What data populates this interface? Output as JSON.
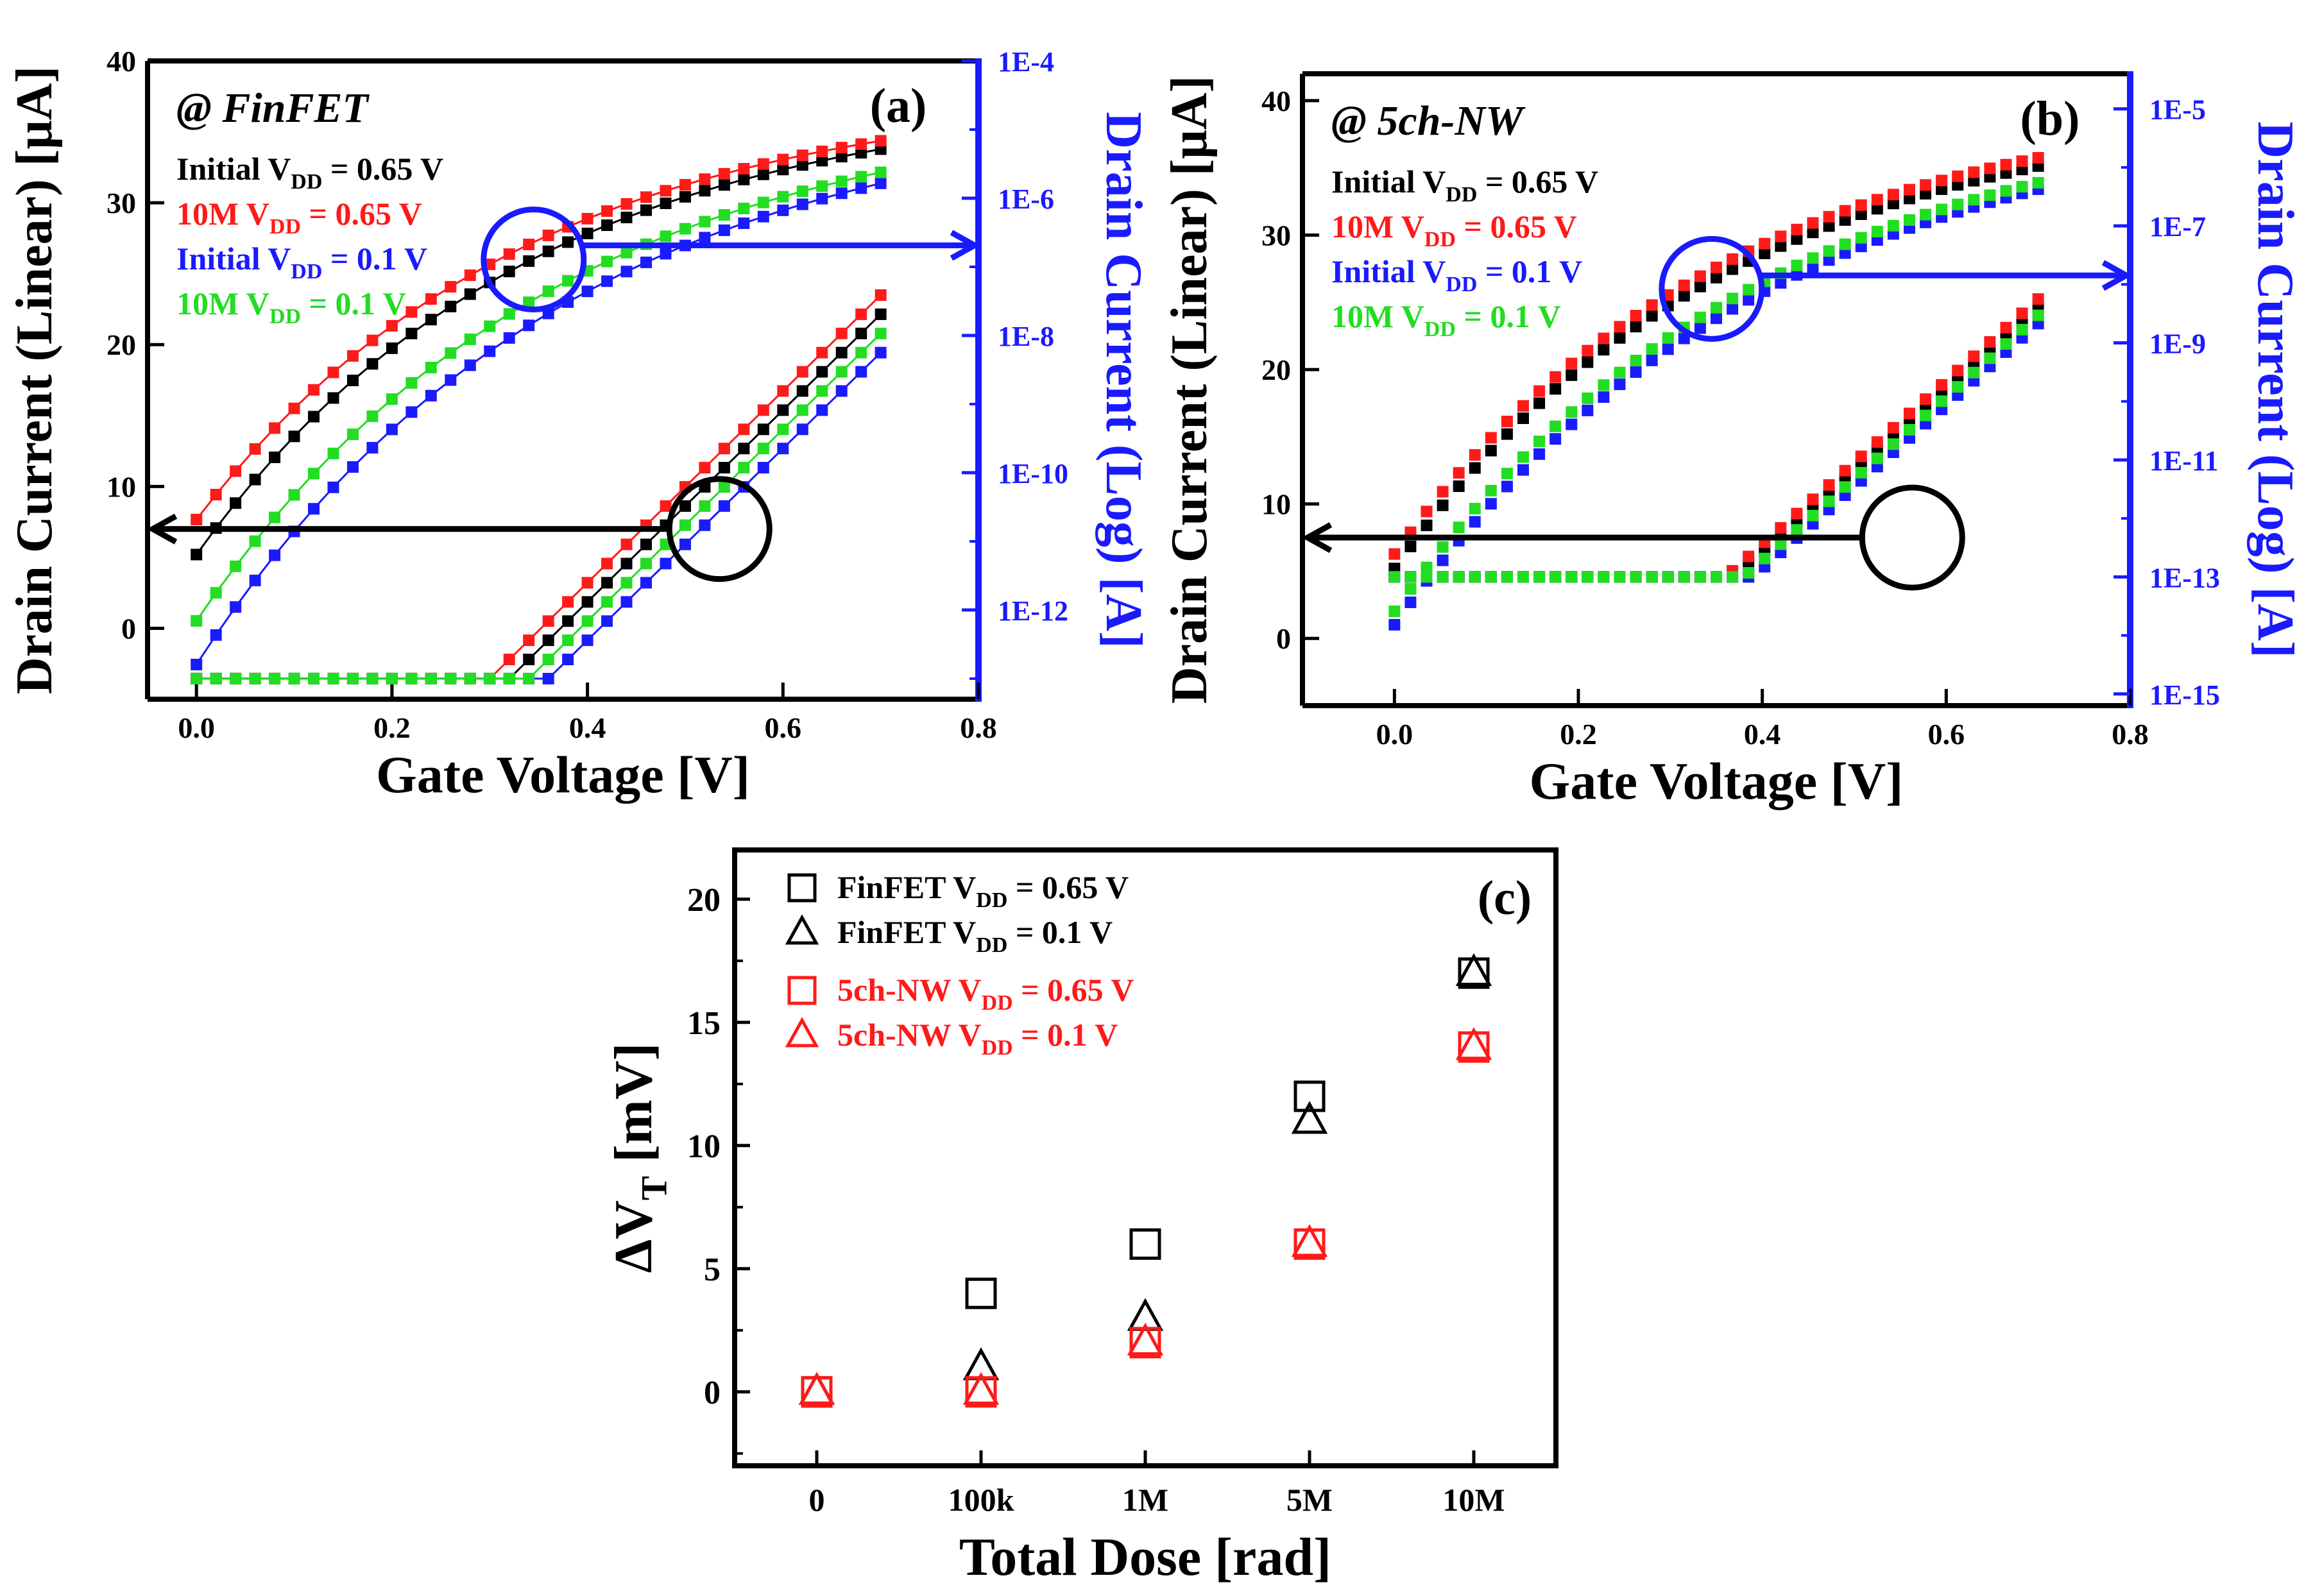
{
  "colors": {
    "black": "#000000",
    "red": "#ff1a1a",
    "green": "#22dd22",
    "blue": "#1a1aff",
    "axis_blue": "#1a1aff"
  },
  "chart_data": [
    {
      "id": "a",
      "type": "line",
      "panel_label": "(a)",
      "device_label": "@ FinFET",
      "xlabel": "Gate Voltage [V]",
      "ylabel": "Drain Current (Linear) [μA]",
      "y2label": "Drain Current (Log) [A]",
      "xlim": [
        -0.05,
        0.8
      ],
      "ylim": [
        -5,
        40
      ],
      "y2lim_log10": [
        -13.3,
        -4
      ],
      "xticks": [
        "0.0",
        "0.2",
        "0.4",
        "0.6",
        "0.8"
      ],
      "xtick_values": [
        0.0,
        0.2,
        0.4,
        0.6,
        0.8
      ],
      "yticks": [
        "0",
        "10",
        "20",
        "30",
        "40"
      ],
      "ytick_values": [
        0,
        10,
        20,
        30,
        40
      ],
      "y2ticks": [
        "1E-12",
        "1E-10",
        "1E-8",
        "1E-6",
        "1E-4"
      ],
      "y2tick_exps": [
        -12,
        -10,
        -8,
        -6,
        -4
      ],
      "legend": [
        {
          "pre": "Initial V",
          "sub": "DD",
          "post": " = 0.65 V",
          "color": "#000000"
        },
        {
          "pre": "10M V",
          "sub": "DD",
          "post": " = 0.65 V",
          "color": "#ff1a1a"
        },
        {
          "pre": "Initial V",
          "sub": "DD",
          "post": " = 0.1 V",
          "color": "#1a1aff"
        },
        {
          "pre": "10M V",
          "sub": "DD",
          "post": " = 0.1 V",
          "color": "#22dd22"
        }
      ],
      "circle_linear": {
        "x": 0.345,
        "y": 26,
        "label": "linear-region-circle"
      },
      "circle_log": {
        "x": 0.535,
        "y": 7,
        "label": "subthreshold-circle"
      },
      "arrow_right_y": 27,
      "arrow_left_y": 7,
      "series": [
        {
          "name": "Initial V_DD = 0.65 V",
          "color": "#000000",
          "lin_offset": 0,
          "lin_shift": 0,
          "log_shift": 0.0,
          "vt": 0.5,
          "sat": 38.0,
          "ion_exp": -4.7
        },
        {
          "name": "10M V_DD = 0.65 V",
          "color": "#ff1a1a",
          "lin_offset": 0,
          "lin_shift": -0.02,
          "log_shift": -0.015,
          "vt": 0.48,
          "sat": 38.2,
          "ion_exp": -4.6
        },
        {
          "name": "Initial V_DD = 0.1 V",
          "color": "#1a1aff",
          "lin_offset": 0,
          "lin_shift": 0.04,
          "log_shift": 0.045,
          "vt": 0.54,
          "sat": 37.6,
          "ion_exp": -7.6
        },
        {
          "name": "10M V_DD = 0.1 V",
          "color": "#22dd22",
          "lin_offset": 0,
          "lin_shift": 0.02,
          "log_shift": 0.03,
          "vt": 0.52,
          "sat": 37.6,
          "ion_exp": -7.3
        }
      ],
      "connect_lines": true
    },
    {
      "id": "b",
      "type": "scatter",
      "panel_label": "(b)",
      "device_label": "@ 5ch-NW",
      "xlabel": "Gate Voltage [V]",
      "ylabel": "Drain Current (Linear) [μA]",
      "y2label": "Drain Current (Log) [A]",
      "xlim": [
        -0.1,
        0.8
      ],
      "ylim": [
        -5,
        42
      ],
      "y2lim_log10": [
        -15.2,
        -4.4
      ],
      "xticks": [
        "0.0",
        "0.2",
        "0.4",
        "0.6",
        "0.8"
      ],
      "xtick_values": [
        0.0,
        0.2,
        0.4,
        0.6,
        0.8
      ],
      "yticks": [
        "0",
        "10",
        "20",
        "30",
        "40"
      ],
      "ytick_values": [
        0,
        10,
        20,
        30,
        40
      ],
      "y2ticks": [
        "1E-15",
        "1E-13",
        "1E-11",
        "1E-9",
        "1E-7",
        "1E-5"
      ],
      "y2tick_exps": [
        -15,
        -13,
        -11,
        -9,
        -7,
        -5
      ],
      "legend": [
        {
          "pre": "Initial V",
          "sub": "DD",
          "post": " = 0.65 V",
          "color": "#000000"
        },
        {
          "pre": "10M V",
          "sub": "DD",
          "post": " = 0.65 V",
          "color": "#ff1a1a"
        },
        {
          "pre": "Initial V",
          "sub": "DD",
          "post": " = 0.1 V",
          "color": "#1a1aff"
        },
        {
          "pre": "10M V",
          "sub": "DD",
          "post": " = 0.1 V",
          "color": "#22dd22"
        }
      ],
      "circle_linear": {
        "x": 0.345,
        "y": 26,
        "label": "linear-region-circle"
      },
      "circle_log": {
        "x": 0.563,
        "y": 7.5,
        "label": "subthreshold-circle"
      },
      "arrow_right_y": 27,
      "arrow_left_y": 7.5,
      "series": [
        {
          "name": "Initial V_DD = 0.65 V",
          "color": "#000000",
          "lin_offset": 0.25,
          "lin_shift": 0,
          "log_shift": 0.0,
          "vt": 0.55,
          "sat": 40.3,
          "ion_exp": -5.3
        },
        {
          "name": "10M V_DD = 0.65 V",
          "color": "#ff1a1a",
          "lin_offset": 0,
          "lin_shift": -0.005,
          "log_shift": -0.01,
          "vt": 0.54,
          "sat": 40.8,
          "ion_exp": -5.0
        },
        {
          "name": "Initial V_DD = 0.1 V",
          "color": "#1a1aff",
          "lin_offset": 0,
          "lin_shift": 0.005,
          "log_shift": 0.02,
          "vt": 0.57,
          "sat": 40.4,
          "ion_exp": -7.6
        },
        {
          "name": "10M V_DD = 0.1 V",
          "color": "#22dd22",
          "lin_offset": 0,
          "lin_shift": 0.005,
          "log_shift": 0.01,
          "vt": 0.56,
          "sat": 40.4,
          "ion_exp": -7.1
        }
      ],
      "connect_lines": false
    },
    {
      "id": "c",
      "type": "scatter",
      "panel_label": "(c)",
      "xlabel": "Total Dose [rad]",
      "ylabel_pre": "ΔV",
      "ylabel_sub": "T",
      "ylabel_post": " [mV]",
      "categories": [
        "0",
        "100k",
        "1M",
        "5M",
        "10M"
      ],
      "ylim": [
        -3,
        22
      ],
      "yticks": [
        "0",
        "5",
        "10",
        "15",
        "20"
      ],
      "ytick_values": [
        0,
        5,
        10,
        15,
        20
      ],
      "legend": [
        {
          "pre": "FinFET  V",
          "sub": "DD",
          "post": " = 0.65 V",
          "color": "#000000",
          "marker": "square"
        },
        {
          "pre": "FinFET  V",
          "sub": "DD",
          "post": " = 0.1 V",
          "color": "#000000",
          "marker": "triangle"
        },
        {
          "pre": "5ch-NW  V",
          "sub": "DD",
          "post": " = 0.65 V",
          "color": "#ff1a1a",
          "marker": "square"
        },
        {
          "pre": "5ch-NW  V",
          "sub": "DD",
          "post": " = 0.1 V",
          "color": "#ff1a1a",
          "marker": "triangle"
        }
      ],
      "series": [
        {
          "name": "FinFET V_DD = 0.65 V",
          "marker": "square",
          "color": "#000000",
          "values": [
            0,
            4,
            6,
            12,
            17
          ]
        },
        {
          "name": "FinFET V_DD = 0.1 V",
          "marker": "triangle",
          "color": "#000000",
          "values": [
            0,
            1,
            3,
            11,
            17
          ]
        },
        {
          "name": "5ch-NW V_DD = 0.65 V",
          "marker": "square",
          "color": "#ff1a1a",
          "values": [
            0,
            0,
            2,
            6,
            14
          ]
        },
        {
          "name": "5ch-NW V_DD = 0.1 V",
          "marker": "triangle",
          "color": "#ff1a1a",
          "values": [
            0,
            0,
            2,
            6,
            14
          ]
        }
      ]
    }
  ]
}
